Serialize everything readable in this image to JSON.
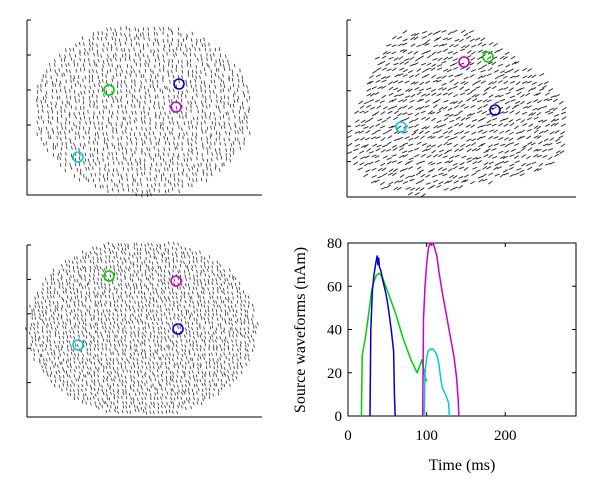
{
  "figure": {
    "panels": [
      {
        "id": "cortex-view-1",
        "kind": "dipole-field",
        "markers": [
          {
            "color": "#00d000",
            "label": "green"
          },
          {
            "color": "#0000cc",
            "label": "blue"
          },
          {
            "color": "#cc00cc",
            "label": "magenta"
          },
          {
            "color": "#00cccc",
            "label": "cyan"
          }
        ]
      },
      {
        "id": "cortex-view-2",
        "kind": "dipole-field",
        "markers": [
          {
            "color": "#cc00cc",
            "label": "magenta"
          },
          {
            "color": "#00d000",
            "label": "green"
          },
          {
            "color": "#0000cc",
            "label": "blue"
          },
          {
            "color": "#00cccc",
            "label": "cyan"
          }
        ]
      },
      {
        "id": "cortex-view-3",
        "kind": "dipole-field",
        "markers": [
          {
            "color": "#00d000",
            "label": "green"
          },
          {
            "color": "#cc00cc",
            "label": "magenta"
          },
          {
            "color": "#0000cc",
            "label": "blue"
          },
          {
            "color": "#00cccc",
            "label": "cyan"
          }
        ]
      }
    ]
  },
  "chart_data": {
    "type": "line",
    "title": "",
    "xlabel": "Time (ms)",
    "ylabel": "Source waveforms (nAm)",
    "xlim": [
      0,
      290
    ],
    "ylim": [
      0,
      80
    ],
    "xticks": [
      0,
      100,
      200
    ],
    "yticks": [
      0,
      20,
      40,
      60,
      80
    ],
    "grid": false,
    "series": [
      {
        "color": "#00d000",
        "x": [
          17,
          18,
          22,
          25,
          28,
          30,
          33,
          36,
          40,
          44,
          48,
          52,
          55,
          60,
          65,
          70,
          75,
          80,
          84,
          88,
          92,
          94,
          96,
          98,
          100
        ],
        "y": [
          0,
          28,
          36,
          44,
          52,
          58,
          62,
          65,
          66,
          64,
          60,
          56,
          53,
          48,
          42,
          36,
          31,
          26,
          23,
          20,
          24,
          26,
          22,
          18,
          16
        ]
      },
      {
        "color": "#0000cc",
        "x": [
          28,
          29,
          31,
          33,
          35,
          36,
          37,
          38,
          39,
          40,
          41,
          42,
          44,
          46,
          48,
          50,
          52,
          55,
          58,
          59,
          60
        ],
        "y": [
          0,
          40,
          58,
          65,
          70,
          72,
          74,
          70,
          73,
          69,
          68,
          67,
          63,
          60,
          57,
          53,
          48,
          40,
          30,
          10,
          0
        ]
      },
      {
        "color": "#cc00cc",
        "x": [
          95,
          96,
          98,
          100,
          102,
          104,
          106,
          108,
          110,
          113,
          116,
          120,
          125,
          130,
          135,
          138,
          140,
          141
        ],
        "y": [
          0,
          45,
          60,
          70,
          77,
          80,
          79,
          80,
          78,
          74,
          66,
          57,
          47,
          37,
          27,
          18,
          8,
          0
        ]
      },
      {
        "color": "#00cccc",
        "x": [
          97,
          98,
          100,
          102,
          105,
          108,
          110,
          112,
          114,
          116,
          118,
          120,
          124,
          128,
          129
        ],
        "y": [
          0,
          20,
          27,
          30,
          31,
          31,
          30,
          29,
          27,
          23,
          17,
          13,
          10,
          6,
          0
        ]
      }
    ]
  }
}
